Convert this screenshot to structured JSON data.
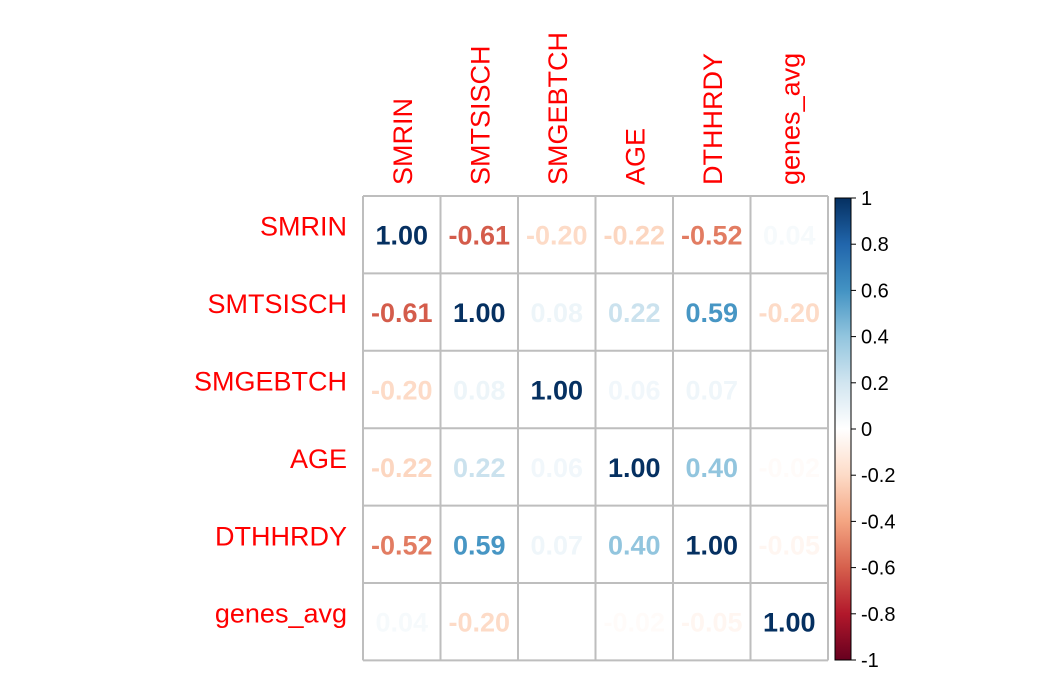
{
  "chart_data": {
    "type": "heatmap",
    "title": "",
    "variables": [
      "SMRIN",
      "SMTSISCH",
      "SMGEBTCH",
      "AGE",
      "DTHHRDY",
      "genes_avg"
    ],
    "matrix": [
      [
        "1.00",
        "-0.61",
        "-0.20",
        "-0.22",
        "-0.52",
        "0.04"
      ],
      [
        "-0.61",
        "1.00",
        "0.08",
        "0.22",
        "0.59",
        "-0.20"
      ],
      [
        "-0.20",
        "0.08",
        "1.00",
        "0.06",
        "0.07",
        "0.00"
      ],
      [
        "-0.22",
        "0.22",
        "0.06",
        "1.00",
        "0.40",
        "-0.02"
      ],
      [
        "-0.52",
        "0.59",
        "0.07",
        "0.40",
        "1.00",
        "-0.05"
      ],
      [
        "0.04",
        "-0.20",
        "0.00",
        "-0.02",
        "-0.05",
        "1.00"
      ]
    ],
    "colorbar": {
      "range": [
        -1,
        1
      ],
      "ticks": [
        "1",
        "0.8",
        "0.6",
        "0.4",
        "0.2",
        "0",
        "-0.2",
        "-0.4",
        "-0.6",
        "-0.8",
        "-1"
      ],
      "colors": [
        "#67001F",
        "#B2182B",
        "#D6604D",
        "#F4A582",
        "#FDDBC7",
        "#FFFFFF",
        "#D1E5F0",
        "#92C5DE",
        "#4393C3",
        "#2166AC",
        "#053061"
      ]
    },
    "label_color": "#FF0000",
    "grid_color": "#BEBEBE",
    "legend_placement": "right"
  }
}
